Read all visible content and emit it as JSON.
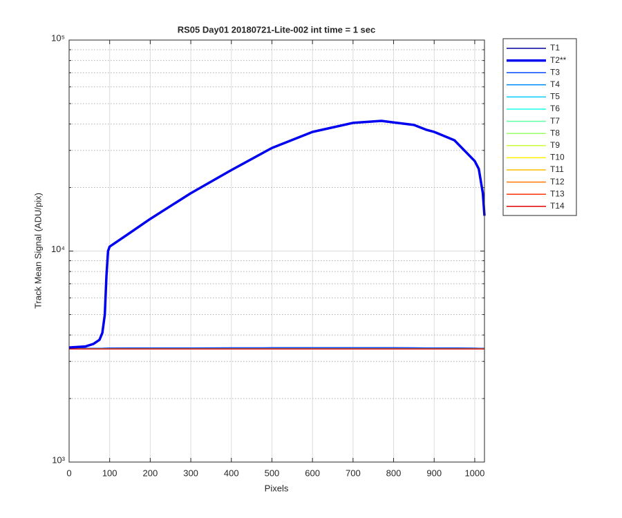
{
  "chart_data": {
    "type": "line",
    "title": "RS05 Day01 20180721-Lite-002 int time = 1 sec",
    "xlabel": "Pixels",
    "ylabel": "Track Mean Signal (ADU/pix)",
    "xlim": [
      0,
      1024
    ],
    "xticks": [
      0,
      100,
      200,
      300,
      400,
      500,
      600,
      700,
      800,
      900,
      1000
    ],
    "ylim": [
      1000,
      100000
    ],
    "yscale": "log",
    "yticks": [
      {
        "value": 1000,
        "label": "10³"
      },
      {
        "value": 10000,
        "label": "10⁴"
      },
      {
        "value": 100000,
        "label": "10⁵"
      }
    ],
    "yminorticks": [
      2000,
      3000,
      4000,
      5000,
      6000,
      7000,
      8000,
      9000,
      20000,
      30000,
      40000,
      50000,
      60000,
      70000,
      80000,
      90000
    ],
    "grid": true,
    "legend": "outside-right",
    "x": [
      0,
      40,
      60,
      75,
      82,
      88,
      92,
      96,
      100,
      150,
      200,
      300,
      400,
      500,
      600,
      700,
      770,
      800,
      850,
      880,
      900,
      950,
      1000,
      1010,
      1020,
      1024
    ],
    "series": [
      {
        "name": "T1",
        "color": "#00009c",
        "width": 1.5,
        "values": [
          3455,
          3458,
          3460,
          3462,
          3463,
          3465,
          3466,
          3467,
          3468,
          3470,
          3472,
          3475,
          3478,
          3480,
          3480,
          3480,
          3480,
          3480,
          3478,
          3476,
          3475,
          3470,
          3465,
          3462,
          3460,
          3458
        ]
      },
      {
        "name": "T2**",
        "color": "#0000f0",
        "width": 3.5,
        "values": [
          3490,
          3530,
          3630,
          3800,
          4100,
          5000,
          7600,
          10000,
          10500,
          12200,
          14200,
          18800,
          24200,
          30800,
          36700,
          40500,
          41400,
          40700,
          39600,
          37600,
          36700,
          33500,
          26700,
          24500,
          18800,
          14700
        ]
      },
      {
        "name": "T3",
        "color": "#0048ff",
        "width": 1.5,
        "values": [
          3455,
          3458,
          3460,
          3462,
          3463,
          3465,
          3466,
          3467,
          3468,
          3470,
          3472,
          3475,
          3478,
          3480,
          3480,
          3480,
          3480,
          3480,
          3478,
          3476,
          3475,
          3470,
          3465,
          3462,
          3460,
          3458
        ]
      },
      {
        "name": "T4",
        "color": "#008cff",
        "width": 1.5,
        "values": [
          3440,
          3440,
          3440,
          3440,
          3440,
          3440,
          3440,
          3440,
          3440,
          3440,
          3440,
          3440,
          3440,
          3440,
          3440,
          3440,
          3440,
          3440,
          3440,
          3440,
          3440,
          3440,
          3440,
          3440,
          3440,
          3440
        ]
      },
      {
        "name": "T5",
        "color": "#00ccff",
        "width": 1.5,
        "values": [
          3440,
          3440,
          3440,
          3440,
          3440,
          3440,
          3440,
          3440,
          3440,
          3440,
          3440,
          3440,
          3440,
          3440,
          3440,
          3440,
          3440,
          3440,
          3440,
          3440,
          3440,
          3440,
          3440,
          3440,
          3440,
          3440
        ]
      },
      {
        "name": "T6",
        "color": "#1affe5",
        "width": 1.5,
        "values": [
          3440,
          3440,
          3440,
          3440,
          3440,
          3440,
          3440,
          3440,
          3440,
          3440,
          3440,
          3440,
          3440,
          3440,
          3440,
          3440,
          3440,
          3440,
          3440,
          3440,
          3440,
          3440,
          3440,
          3440,
          3440,
          3440
        ]
      },
      {
        "name": "T7",
        "color": "#5fffa0",
        "width": 1.5,
        "values": [
          3440,
          3440,
          3440,
          3440,
          3440,
          3440,
          3440,
          3440,
          3440,
          3440,
          3440,
          3440,
          3440,
          3440,
          3440,
          3440,
          3440,
          3440,
          3440,
          3440,
          3440,
          3440,
          3440,
          3440,
          3440,
          3440
        ]
      },
      {
        "name": "T8",
        "color": "#99ff66",
        "width": 1.5,
        "values": [
          3440,
          3440,
          3440,
          3440,
          3440,
          3440,
          3440,
          3440,
          3440,
          3440,
          3440,
          3440,
          3440,
          3440,
          3440,
          3440,
          3440,
          3440,
          3440,
          3440,
          3440,
          3440,
          3440,
          3440,
          3440,
          3440
        ]
      },
      {
        "name": "T9",
        "color": "#ccff33",
        "width": 1.5,
        "values": [
          3440,
          3440,
          3440,
          3440,
          3440,
          3440,
          3440,
          3440,
          3440,
          3440,
          3440,
          3440,
          3440,
          3440,
          3440,
          3440,
          3440,
          3440,
          3440,
          3440,
          3440,
          3440,
          3440,
          3440,
          3440,
          3440
        ]
      },
      {
        "name": "T10",
        "color": "#ffee00",
        "width": 1.5,
        "values": [
          3435,
          3435,
          3435,
          3435,
          3435,
          3435,
          3435,
          3435,
          3435,
          3435,
          3435,
          3435,
          3435,
          3435,
          3435,
          3435,
          3435,
          3435,
          3435,
          3435,
          3435,
          3435,
          3435,
          3435,
          3435,
          3435
        ]
      },
      {
        "name": "T11",
        "color": "#ffbb00",
        "width": 1.5,
        "values": [
          3435,
          3435,
          3435,
          3435,
          3435,
          3435,
          3435,
          3435,
          3435,
          3435,
          3435,
          3435,
          3435,
          3435,
          3435,
          3435,
          3435,
          3435,
          3435,
          3435,
          3435,
          3435,
          3435,
          3435,
          3435,
          3435
        ]
      },
      {
        "name": "T12",
        "color": "#ff7700",
        "width": 1.5,
        "values": [
          3435,
          3435,
          3435,
          3435,
          3435,
          3435,
          3435,
          3435,
          3435,
          3435,
          3435,
          3435,
          3435,
          3435,
          3435,
          3435,
          3435,
          3435,
          3435,
          3435,
          3435,
          3435,
          3435,
          3435,
          3435,
          3435
        ]
      },
      {
        "name": "T13",
        "color": "#ff3300",
        "width": 1.5,
        "values": [
          3435,
          3435,
          3435,
          3435,
          3435,
          3435,
          3435,
          3435,
          3435,
          3435,
          3435,
          3435,
          3435,
          3435,
          3435,
          3435,
          3435,
          3435,
          3435,
          3435,
          3435,
          3435,
          3435,
          3435,
          3435,
          3435
        ]
      },
      {
        "name": "T14",
        "color": "#e00000",
        "width": 1.5,
        "values": [
          3435,
          3435,
          3435,
          3435,
          3435,
          3435,
          3435,
          3435,
          3435,
          3435,
          3435,
          3435,
          3435,
          3435,
          3435,
          3435,
          3435,
          3435,
          3435,
          3435,
          3435,
          3435,
          3435,
          3435,
          3435,
          3435
        ]
      }
    ]
  }
}
